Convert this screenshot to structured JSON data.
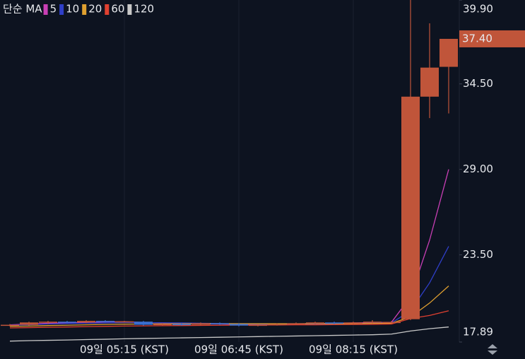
{
  "chart_data": {
    "type": "candlestick",
    "legend_title": "단순 MA",
    "categories": [
      null,
      null,
      null,
      null,
      null,
      null,
      "09일 05:15 (KST)",
      null,
      null,
      null,
      null,
      null,
      "09일 06:45 (KST)",
      null,
      null,
      null,
      null,
      null,
      "09일 08:15 (KST)",
      null,
      null,
      null,
      null,
      null
    ],
    "open": [
      18.95,
      19.0,
      19.15,
      19.2,
      19.15,
      19.25,
      19.2,
      19.2,
      19.0,
      19.05,
      19.0,
      19.1,
      19.05,
      18.95,
      19.0,
      19.05,
      19.1,
      19.15,
      19.1,
      19.15,
      19.15,
      19.36,
      33.68,
      35.6
    ],
    "high": [
      19.05,
      19.2,
      19.25,
      19.25,
      19.3,
      19.3,
      19.25,
      19.25,
      19.1,
      19.1,
      19.15,
      19.15,
      19.1,
      19.05,
      19.1,
      19.15,
      19.2,
      19.2,
      19.2,
      19.3,
      19.25,
      39.9,
      38.4,
      37.4
    ],
    "low": [
      18.9,
      18.95,
      19.05,
      19.1,
      19.1,
      19.15,
      19.15,
      18.95,
      18.95,
      18.95,
      18.95,
      19.0,
      18.9,
      18.9,
      18.95,
      19.0,
      19.05,
      19.05,
      19.05,
      19.1,
      19.1,
      19.3,
      32.3,
      32.6
    ],
    "close": [
      19.0,
      19.15,
      19.2,
      19.15,
      19.25,
      19.2,
      19.22,
      19.0,
      19.05,
      19.0,
      19.1,
      19.05,
      18.95,
      19.0,
      19.05,
      19.1,
      19.15,
      19.1,
      19.15,
      19.2,
      19.18,
      33.68,
      35.55,
      37.4
    ],
    "up_color": "#c0553a",
    "down_color": "#3a6fd0",
    "series": [
      {
        "name": "5",
        "color": "#c93fb5",
        "values": [
          19.0,
          19.05,
          19.1,
          19.12,
          19.15,
          19.18,
          19.2,
          19.15,
          19.12,
          19.08,
          19.05,
          19.05,
          19.03,
          19.0,
          19.0,
          19.03,
          19.07,
          19.1,
          19.12,
          19.14,
          19.16,
          20.8,
          24.45,
          29.0
        ]
      },
      {
        "name": "10",
        "color": "#2f3fc8",
        "values": [
          18.98,
          19.0,
          19.05,
          19.08,
          19.1,
          19.12,
          19.14,
          19.14,
          19.13,
          19.12,
          19.1,
          19.08,
          19.06,
          19.04,
          19.03,
          19.03,
          19.04,
          19.06,
          19.08,
          19.1,
          19.12,
          19.9,
          21.7,
          24.05
        ]
      },
      {
        "name": "20",
        "color": "#e0a030",
        "values": [
          18.9,
          18.92,
          18.95,
          18.97,
          19.0,
          19.02,
          19.04,
          19.05,
          19.06,
          19.06,
          19.07,
          19.07,
          19.07,
          19.07,
          19.07,
          19.07,
          19.08,
          19.08,
          19.08,
          19.09,
          19.1,
          19.5,
          20.4,
          21.5
        ]
      },
      {
        "name": "60",
        "color": "#e04030",
        "values": [
          18.8,
          18.82,
          18.84,
          18.86,
          18.88,
          18.9,
          18.92,
          18.93,
          18.94,
          18.95,
          18.96,
          18.97,
          18.98,
          18.98,
          18.99,
          19.0,
          19.0,
          19.01,
          19.02,
          19.03,
          19.05,
          19.4,
          19.6,
          19.9
        ]
      },
      {
        "name": "120",
        "color": "#c8c8c8",
        "values": [
          17.95,
          17.98,
          18.0,
          18.02,
          18.05,
          18.07,
          18.1,
          18.12,
          18.14,
          18.16,
          18.18,
          18.2,
          18.22,
          18.24,
          18.26,
          18.28,
          18.3,
          18.32,
          18.34,
          18.36,
          18.4,
          18.6,
          18.75,
          18.86
        ]
      }
    ],
    "ylim": [
      17.89,
      39.9
    ],
    "yticks": [
      17.89,
      {
        "value": 23.5,
        "label": "23.50"
      },
      {
        "value": 29.0,
        "label": "29.00"
      },
      {
        "value": 34.5,
        "label": "34.50"
      },
      {
        "value": 39.9,
        "label": "39.90"
      }
    ],
    "last_price": {
      "value": 37.4,
      "label": "37.40"
    },
    "grid": true
  }
}
